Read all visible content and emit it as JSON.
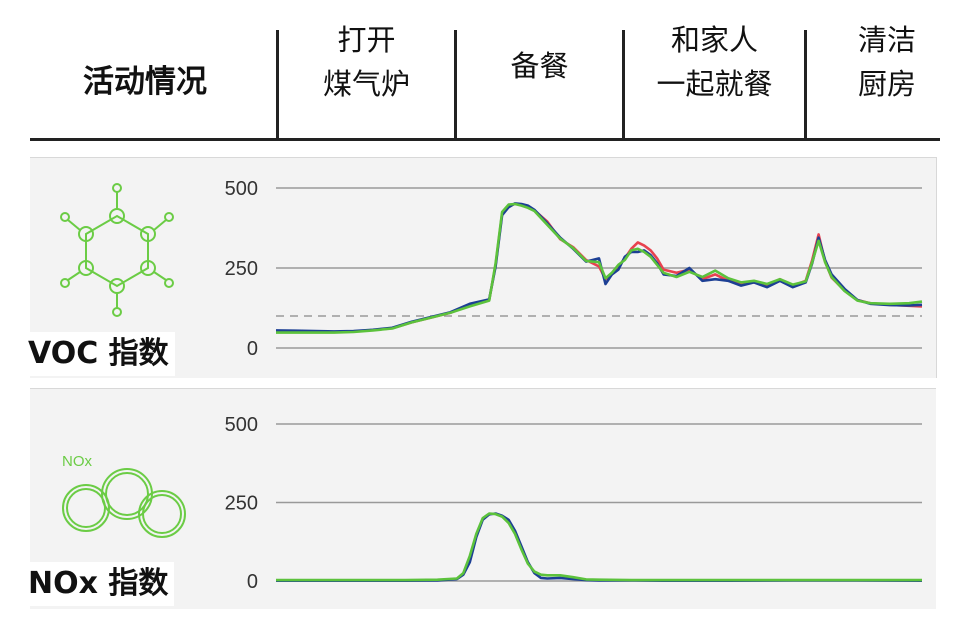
{
  "header": {
    "row_title": "活动情况",
    "columns": [
      {
        "line1": "打开",
        "line2": "煤气炉"
      },
      {
        "line1": "备餐",
        "line2": ""
      },
      {
        "line1": "和家人",
        "line2": "一起就餐"
      },
      {
        "line1": "清洁",
        "line2": "厨房"
      }
    ]
  },
  "icons": {
    "voc": "benzene-molecule-icon",
    "nox": "nox-bubbles-icon",
    "nox_text": "NOx",
    "color": "#6bcc45"
  },
  "colors": {
    "series_red": "#e8424f",
    "series_blue": "#1c3f94",
    "series_green": "#5cc23c",
    "grid": "#999999",
    "threshold": "#999999"
  },
  "chart_data": [
    {
      "type": "line",
      "title": "VOC 指数",
      "xlabel": "",
      "ylabel": "",
      "ylim": [
        0,
        500
      ],
      "yticks": [
        0,
        250,
        500
      ],
      "threshold": 100,
      "x": [
        0,
        3,
        6,
        9,
        12,
        15,
        18,
        21,
        24,
        27,
        30,
        33,
        34,
        35,
        36,
        37,
        38,
        39,
        40,
        42,
        44,
        46,
        48,
        50,
        51,
        52,
        53,
        54,
        55,
        56,
        57,
        58,
        59,
        60,
        62,
        64,
        66,
        68,
        70,
        72,
        74,
        76,
        78,
        80,
        82,
        83,
        84,
        85,
        86,
        88,
        90,
        92,
        95,
        98,
        100
      ],
      "series": [
        {
          "name": "",
          "color_key": "series_red",
          "values": [
            52,
            52,
            51,
            50,
            52,
            56,
            62,
            80,
            95,
            110,
            135,
            150,
            260,
            420,
            445,
            450,
            448,
            440,
            430,
            395,
            340,
            315,
            275,
            255,
            215,
            230,
            255,
            280,
            310,
            330,
            320,
            305,
            280,
            245,
            235,
            245,
            215,
            230,
            210,
            200,
            205,
            195,
            215,
            195,
            210,
            275,
            355,
            270,
            220,
            180,
            150,
            140,
            135,
            132,
            130
          ]
        },
        {
          "name": "",
          "color_key": "series_blue",
          "values": [
            55,
            54,
            53,
            52,
            53,
            57,
            63,
            82,
            97,
            112,
            138,
            152,
            255,
            415,
            440,
            452,
            450,
            445,
            432,
            390,
            345,
            310,
            270,
            280,
            200,
            230,
            245,
            285,
            300,
            300,
            305,
            290,
            265,
            230,
            225,
            250,
            210,
            215,
            210,
            195,
            205,
            190,
            210,
            190,
            205,
            265,
            345,
            275,
            230,
            185,
            150,
            138,
            134,
            133,
            135
          ]
        },
        {
          "name": "",
          "color_key": "series_green",
          "values": [
            48,
            48,
            48,
            48,
            50,
            55,
            61,
            80,
            95,
            110,
            130,
            148,
            265,
            425,
            448,
            450,
            445,
            438,
            428,
            385,
            342,
            312,
            272,
            268,
            218,
            235,
            260,
            275,
            305,
            310,
            300,
            285,
            260,
            235,
            222,
            238,
            222,
            242,
            218,
            205,
            210,
            200,
            215,
            198,
            208,
            268,
            335,
            268,
            222,
            178,
            148,
            140,
            138,
            140,
            145
          ]
        }
      ]
    },
    {
      "type": "line",
      "title": "NOx 指数",
      "xlabel": "",
      "ylabel": "",
      "ylim": [
        0,
        500
      ],
      "yticks": [
        0,
        250,
        500
      ],
      "x": [
        0,
        10,
        20,
        25,
        28,
        29,
        30,
        31,
        32,
        33,
        34,
        35,
        36,
        37,
        38,
        39,
        40,
        41,
        42,
        44,
        46,
        48,
        50,
        55,
        60,
        70,
        80,
        90,
        100
      ],
      "series": [
        {
          "name": "",
          "color_key": "series_blue",
          "values": [
            1,
            1,
            1,
            2,
            6,
            20,
            60,
            140,
            195,
            212,
            215,
            208,
            195,
            160,
            110,
            60,
            25,
            10,
            8,
            10,
            6,
            3,
            2,
            2,
            1,
            1,
            2,
            2,
            1
          ]
        },
        {
          "name": "",
          "color_key": "series_green",
          "values": [
            3,
            3,
            3,
            4,
            8,
            25,
            80,
            150,
            200,
            215,
            213,
            205,
            185,
            150,
            100,
            55,
            30,
            20,
            18,
            18,
            12,
            5,
            4,
            3,
            3,
            3,
            3,
            3,
            3
          ]
        }
      ]
    }
  ],
  "labels": {
    "voc": "VOC 指数",
    "nox": "NOx 指数"
  }
}
